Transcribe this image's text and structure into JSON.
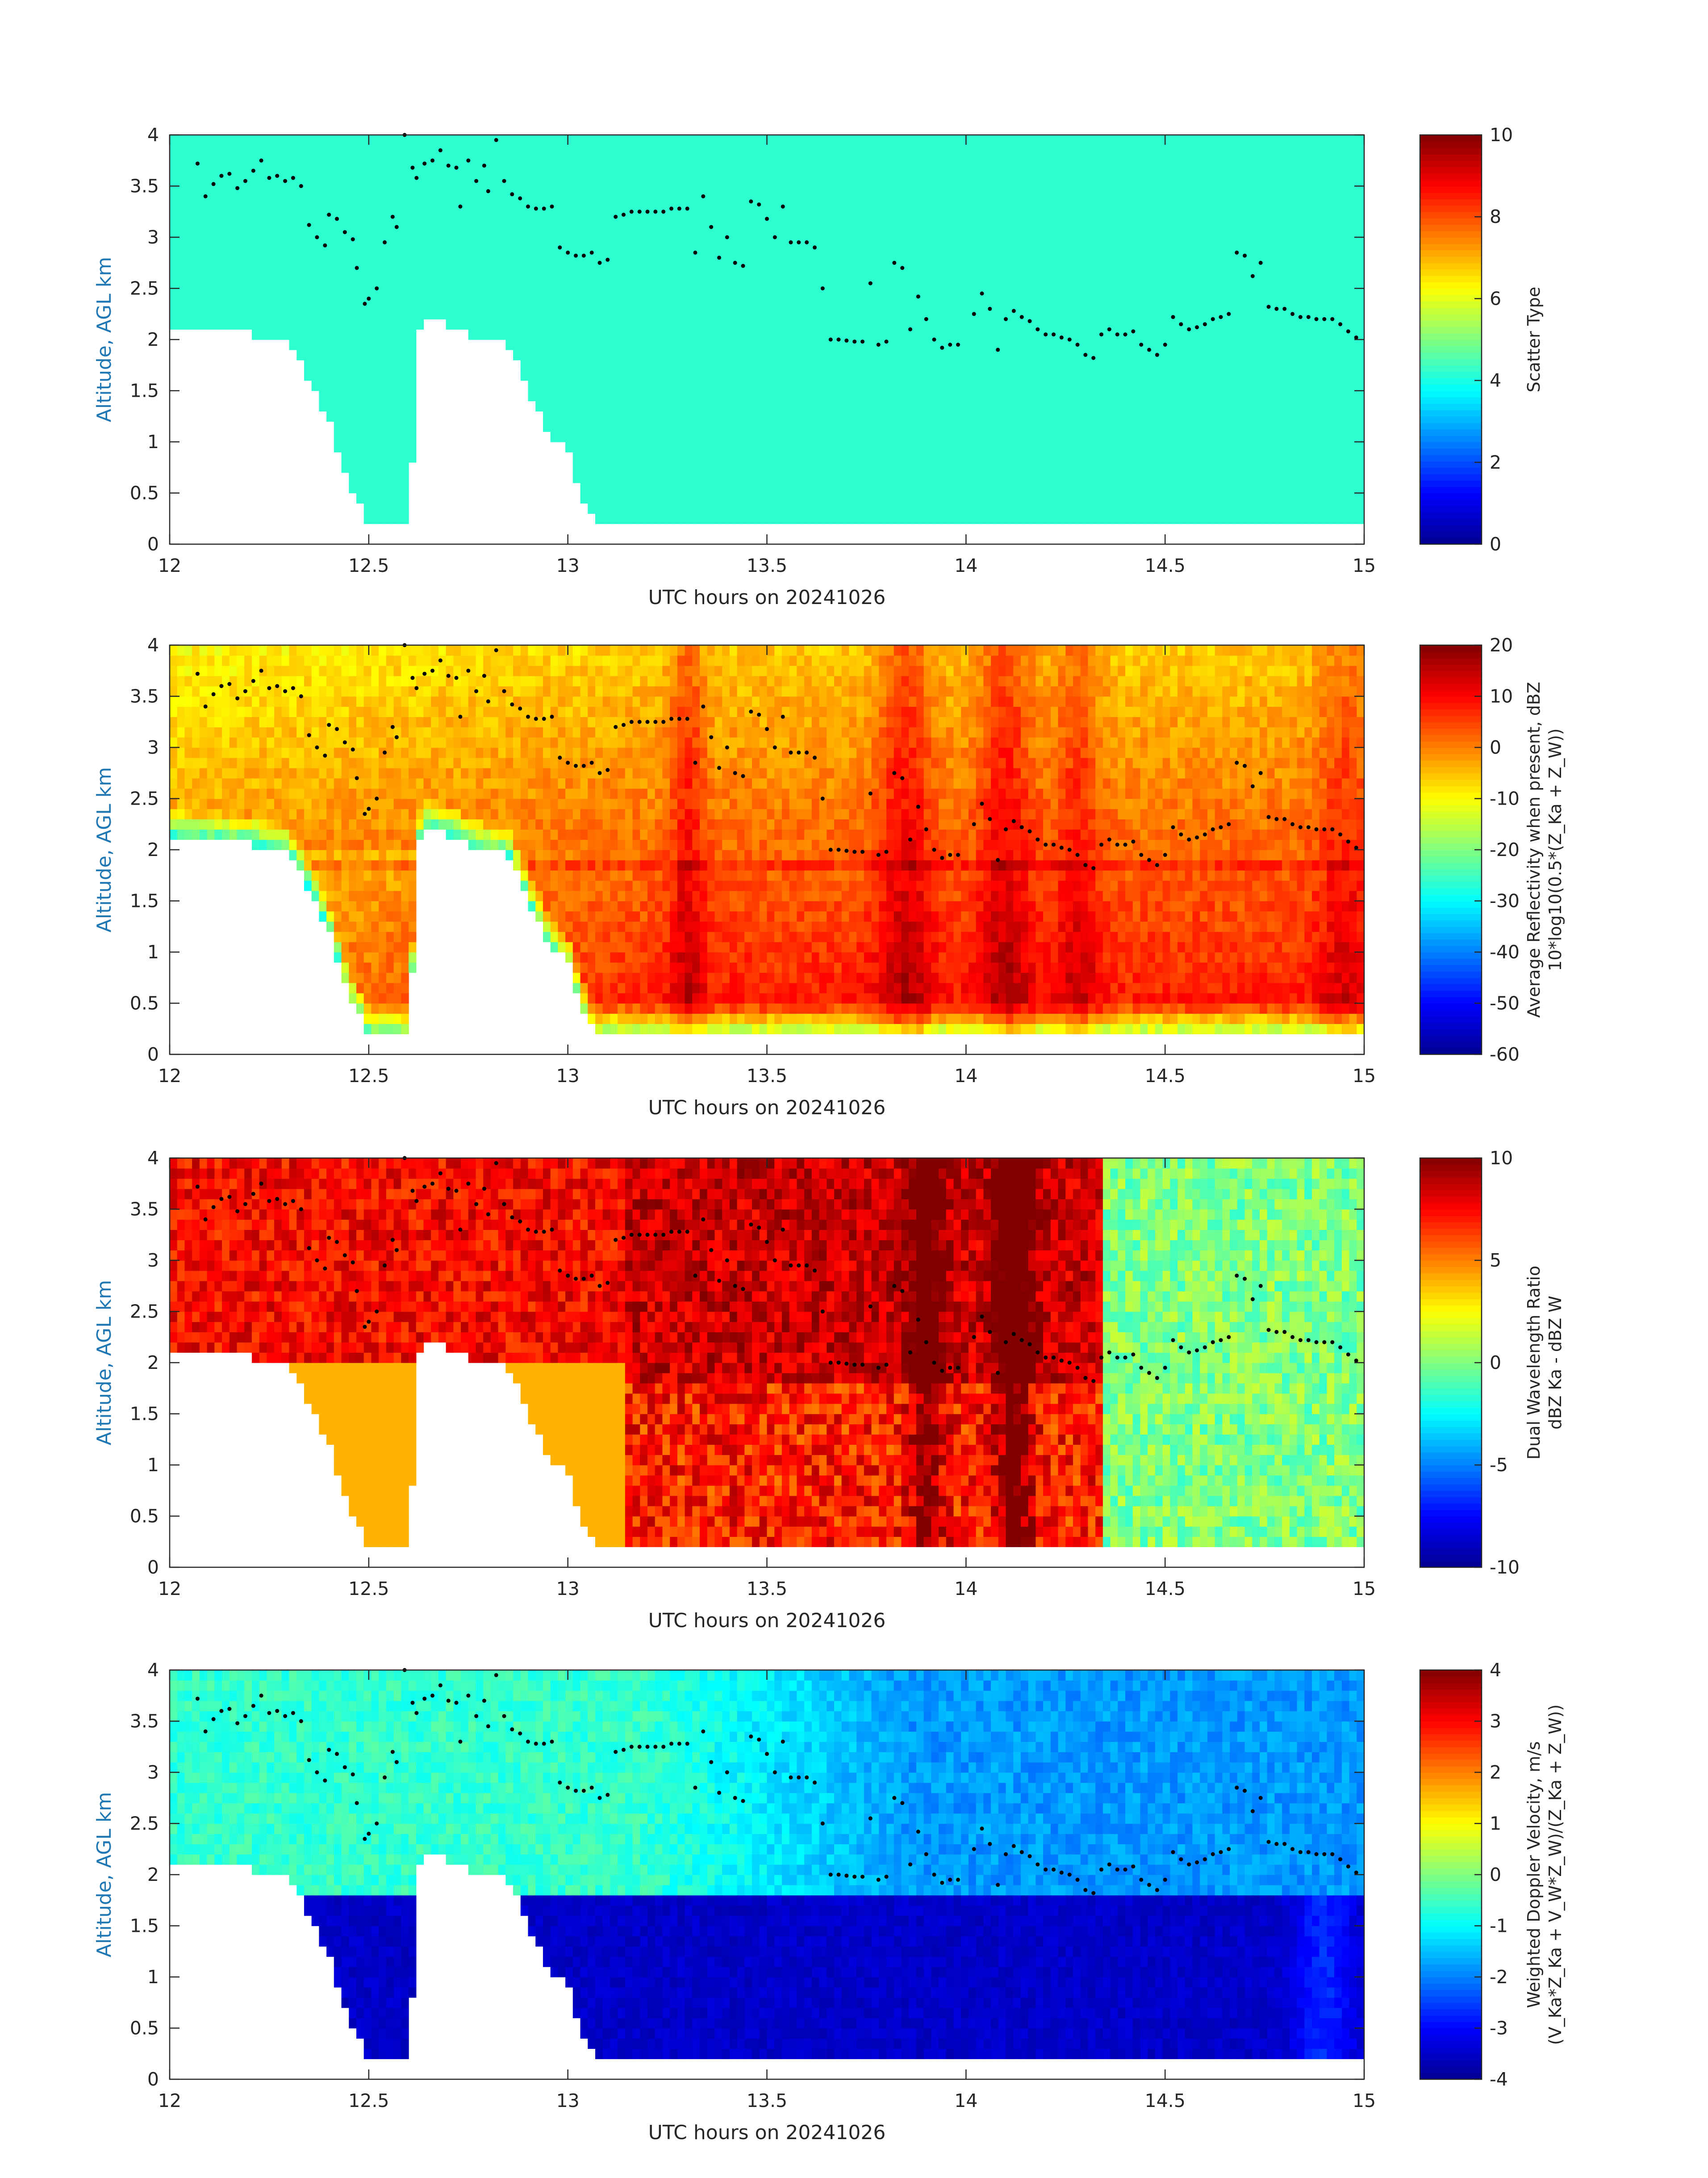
{
  "colormap": [
    "#00008f",
    "#0000ff",
    "#0080ff",
    "#00ffff",
    "#80ff80",
    "#ffff00",
    "#ff8000",
    "#ff0000",
    "#800000"
  ],
  "dot_color": "#000000",
  "mask_color": "#ffffff",
  "chart_data": [
    {
      "type": "heatmap",
      "xlabel": "UTC hours on 20241026",
      "ylabel": "Altitude, AGL km",
      "xlim": [
        12,
        15
      ],
      "ylim": [
        0,
        4
      ],
      "xticks": [
        "12",
        "12.5",
        "13",
        "13.5",
        "14",
        "14.5",
        "15"
      ],
      "yticks": [
        "0",
        "0.5",
        "1",
        "1.5",
        "2",
        "2.5",
        "3",
        "3.5",
        "4"
      ],
      "colorbar": {
        "label": [
          "Scatter Type"
        ],
        "range": [
          0,
          10
        ],
        "ticks": [
          "0",
          "2",
          "4",
          "6",
          "8",
          "10"
        ]
      },
      "field": "scatter_type"
    },
    {
      "type": "heatmap",
      "xlabel": "UTC hours on 20241026",
      "ylabel": "Altitude, AGL km",
      "xlim": [
        12,
        15
      ],
      "ylim": [
        0,
        4
      ],
      "xticks": [
        "12",
        "12.5",
        "13",
        "13.5",
        "14",
        "14.5",
        "15"
      ],
      "yticks": [
        "0",
        "0.5",
        "1",
        "1.5",
        "2",
        "2.5",
        "3",
        "3.5",
        "4"
      ],
      "colorbar": {
        "label": [
          "Average Reflectivity when present, dBZ",
          "10*log10(0.5*(Z_Ka + Z_W))"
        ],
        "range": [
          -60,
          20
        ],
        "ticks": [
          "-60",
          "-50",
          "-40",
          "-30",
          "-20",
          "-10",
          "0",
          "10",
          "20"
        ]
      },
      "field": "reflectivity"
    },
    {
      "type": "heatmap",
      "xlabel": "UTC hours on 20241026",
      "ylabel": "Altitude, AGL km",
      "xlim": [
        12,
        15
      ],
      "ylim": [
        0,
        4
      ],
      "xticks": [
        "12",
        "12.5",
        "13",
        "13.5",
        "14",
        "14.5",
        "15"
      ],
      "yticks": [
        "0",
        "0.5",
        "1",
        "1.5",
        "2",
        "2.5",
        "3",
        "3.5",
        "4"
      ],
      "colorbar": {
        "label": [
          "Dual Wavelength Ratio",
          "dBZ Ka - dBZ W"
        ],
        "range": [
          -10,
          10
        ],
        "ticks": [
          "-10",
          "-5",
          "0",
          "5",
          "10"
        ]
      },
      "field": "dwr"
    },
    {
      "type": "heatmap",
      "xlabel": "UTC hours on 20241026",
      "ylabel": "Altitude, AGL km",
      "xlim": [
        12,
        15
      ],
      "ylim": [
        0,
        4
      ],
      "xticks": [
        "12",
        "12.5",
        "13",
        "13.5",
        "14",
        "14.5",
        "15"
      ],
      "yticks": [
        "0",
        "0.5",
        "1",
        "1.5",
        "2",
        "2.5",
        "3",
        "3.5",
        "4"
      ],
      "colorbar": {
        "label": [
          "Weighted Doppler Velocity, m/s",
          "(V_Ka*Z_Ka + V_W*Z_W)/(Z_Ka + Z_W))"
        ],
        "range": [
          -4,
          4
        ],
        "ticks": [
          "-4",
          "-3",
          "-2",
          "-1",
          "0",
          "1",
          "2",
          "3",
          "4"
        ]
      },
      "field": "velocity"
    }
  ],
  "cloud_top_dots": [
    [
      12.07,
      3.72
    ],
    [
      12.09,
      3.4
    ],
    [
      12.11,
      3.52
    ],
    [
      12.13,
      3.6
    ],
    [
      12.15,
      3.62
    ],
    [
      12.17,
      3.48
    ],
    [
      12.19,
      3.55
    ],
    [
      12.21,
      3.65
    ],
    [
      12.23,
      3.75
    ],
    [
      12.25,
      3.58
    ],
    [
      12.27,
      3.6
    ],
    [
      12.29,
      3.55
    ],
    [
      12.31,
      3.58
    ],
    [
      12.33,
      3.5
    ],
    [
      12.35,
      3.12
    ],
    [
      12.37,
      3.0
    ],
    [
      12.39,
      2.92
    ],
    [
      12.4,
      3.22
    ],
    [
      12.42,
      3.18
    ],
    [
      12.44,
      3.05
    ],
    [
      12.46,
      2.98
    ],
    [
      12.47,
      2.7
    ],
    [
      12.49,
      2.35
    ],
    [
      12.5,
      2.4
    ],
    [
      12.52,
      2.5
    ],
    [
      12.54,
      2.95
    ],
    [
      12.56,
      3.2
    ],
    [
      12.57,
      3.1
    ],
    [
      12.59,
      4.0
    ],
    [
      12.61,
      3.68
    ],
    [
      12.62,
      3.58
    ],
    [
      12.64,
      3.72
    ],
    [
      12.66,
      3.75
    ],
    [
      12.68,
      3.85
    ],
    [
      12.7,
      3.7
    ],
    [
      12.72,
      3.68
    ],
    [
      12.73,
      3.3
    ],
    [
      12.75,
      3.75
    ],
    [
      12.77,
      3.55
    ],
    [
      12.79,
      3.7
    ],
    [
      12.8,
      3.45
    ],
    [
      12.82,
      3.95
    ],
    [
      12.84,
      3.55
    ],
    [
      12.86,
      3.42
    ],
    [
      12.88,
      3.38
    ],
    [
      12.9,
      3.3
    ],
    [
      12.92,
      3.28
    ],
    [
      12.94,
      3.28
    ],
    [
      12.96,
      3.3
    ],
    [
      12.98,
      2.9
    ],
    [
      13.0,
      2.85
    ],
    [
      13.02,
      2.82
    ],
    [
      13.04,
      2.82
    ],
    [
      13.06,
      2.85
    ],
    [
      13.08,
      2.75
    ],
    [
      13.1,
      2.78
    ],
    [
      13.12,
      3.2
    ],
    [
      13.14,
      3.22
    ],
    [
      13.16,
      3.25
    ],
    [
      13.18,
      3.25
    ],
    [
      13.2,
      3.25
    ],
    [
      13.22,
      3.25
    ],
    [
      13.24,
      3.25
    ],
    [
      13.26,
      3.28
    ],
    [
      13.28,
      3.28
    ],
    [
      13.3,
      3.28
    ],
    [
      13.32,
      2.85
    ],
    [
      13.34,
      3.4
    ],
    [
      13.36,
      3.1
    ],
    [
      13.38,
      2.8
    ],
    [
      13.4,
      3.0
    ],
    [
      13.42,
      2.75
    ],
    [
      13.44,
      2.72
    ],
    [
      13.46,
      3.35
    ],
    [
      13.48,
      3.32
    ],
    [
      13.5,
      3.18
    ],
    [
      13.52,
      3.0
    ],
    [
      13.54,
      3.3
    ],
    [
      13.56,
      2.95
    ],
    [
      13.58,
      2.95
    ],
    [
      13.6,
      2.95
    ],
    [
      13.62,
      2.9
    ],
    [
      13.64,
      2.5
    ],
    [
      13.66,
      2.0
    ],
    [
      13.68,
      2.0
    ],
    [
      13.7,
      1.99
    ],
    [
      13.72,
      1.98
    ],
    [
      13.74,
      1.98
    ],
    [
      13.76,
      2.55
    ],
    [
      13.78,
      1.95
    ],
    [
      13.8,
      1.98
    ],
    [
      13.82,
      2.75
    ],
    [
      13.84,
      2.7
    ],
    [
      13.86,
      2.1
    ],
    [
      13.88,
      2.42
    ],
    [
      13.9,
      2.2
    ],
    [
      13.92,
      2.0
    ],
    [
      13.94,
      1.92
    ],
    [
      13.96,
      1.95
    ],
    [
      13.98,
      1.95
    ],
    [
      14.02,
      2.25
    ],
    [
      14.04,
      2.45
    ],
    [
      14.06,
      2.3
    ],
    [
      14.08,
      1.9
    ],
    [
      14.1,
      2.2
    ],
    [
      14.12,
      2.28
    ],
    [
      14.14,
      2.22
    ],
    [
      14.16,
      2.18
    ],
    [
      14.18,
      2.1
    ],
    [
      14.2,
      2.05
    ],
    [
      14.22,
      2.05
    ],
    [
      14.24,
      2.02
    ],
    [
      14.26,
      2.0
    ],
    [
      14.28,
      1.95
    ],
    [
      14.3,
      1.85
    ],
    [
      14.32,
      1.82
    ],
    [
      14.34,
      2.05
    ],
    [
      14.36,
      2.1
    ],
    [
      14.38,
      2.05
    ],
    [
      14.4,
      2.05
    ],
    [
      14.42,
      2.08
    ],
    [
      14.44,
      1.95
    ],
    [
      14.46,
      1.9
    ],
    [
      14.48,
      1.85
    ],
    [
      14.5,
      1.95
    ],
    [
      14.52,
      2.22
    ],
    [
      14.54,
      2.15
    ],
    [
      14.56,
      2.1
    ],
    [
      14.58,
      2.12
    ],
    [
      14.6,
      2.15
    ],
    [
      14.62,
      2.2
    ],
    [
      14.64,
      2.22
    ],
    [
      14.66,
      2.25
    ],
    [
      14.68,
      2.85
    ],
    [
      14.7,
      2.82
    ],
    [
      14.72,
      2.62
    ],
    [
      14.74,
      2.75
    ],
    [
      14.76,
      2.32
    ],
    [
      14.78,
      2.3
    ],
    [
      14.8,
      2.3
    ],
    [
      14.82,
      2.25
    ],
    [
      14.84,
      2.22
    ],
    [
      14.86,
      2.22
    ],
    [
      14.88,
      2.2
    ],
    [
      14.9,
      2.2
    ],
    [
      14.92,
      2.2
    ],
    [
      14.94,
      2.15
    ],
    [
      14.96,
      2.08
    ],
    [
      14.98,
      2.02
    ]
  ]
}
